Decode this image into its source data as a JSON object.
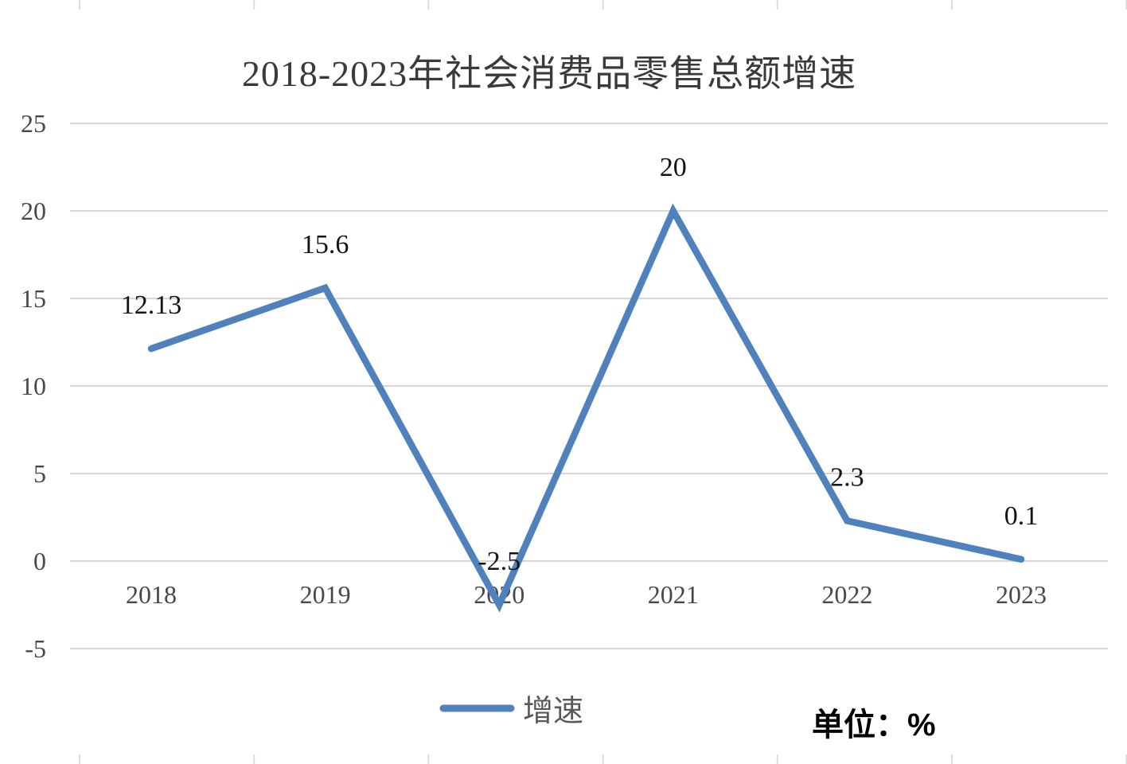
{
  "title": "2018-2023年社会消费品零售总额增速",
  "legend": {
    "label": "增速"
  },
  "unit_label": "单位：%",
  "chart_data": {
    "type": "line",
    "title": "2018-2023年社会消费品零售总额增速",
    "categories": [
      "2018",
      "2019",
      "2020",
      "2021",
      "2022",
      "2023"
    ],
    "series": [
      {
        "name": "增速",
        "values": [
          12.13,
          15.6,
          -2.5,
          20,
          2.3,
          0.1
        ]
      }
    ],
    "data_labels": [
      "12.13",
      "15.6",
      "-2.5",
      "20",
      "2.3",
      "0.1"
    ],
    "y_ticks": [
      25,
      20,
      15,
      10,
      5,
      0,
      -5
    ],
    "ylim": [
      -5,
      25
    ],
    "xlabel": "",
    "ylabel": "",
    "unit": "%",
    "grid": "horizontal",
    "legend_position": "bottom"
  },
  "colors": {
    "line": "#4f81bd",
    "gridline": "#d6d6d6",
    "stub": "#dcdcdc",
    "title_text": "#3a3a3a",
    "tick_text": "#46484f",
    "data_label_text": "#141414",
    "legend_text": "#595959",
    "unit_text": "#000000"
  }
}
